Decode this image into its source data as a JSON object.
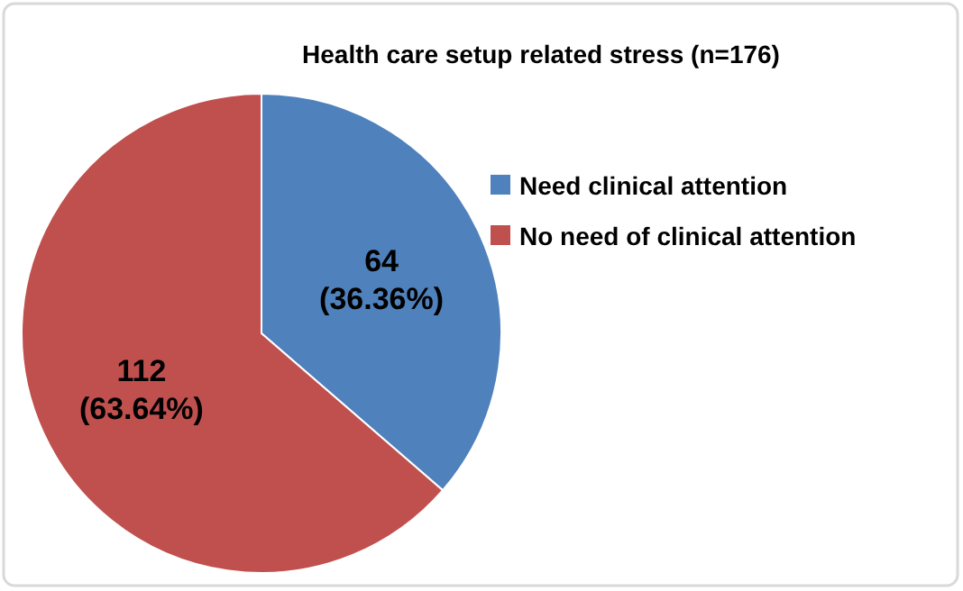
{
  "chart_data": {
    "type": "pie",
    "title": "Health care setup related stress (n=176)",
    "categories": [
      "Need clinical attention",
      "No need of clinical attention"
    ],
    "values": [
      64,
      112
    ],
    "colors": [
      "#4f81bd",
      "#c0504d"
    ],
    "value_labels": [
      "64\n(36.36%)",
      "112\n(63.64%)"
    ],
    "legend": "right"
  }
}
